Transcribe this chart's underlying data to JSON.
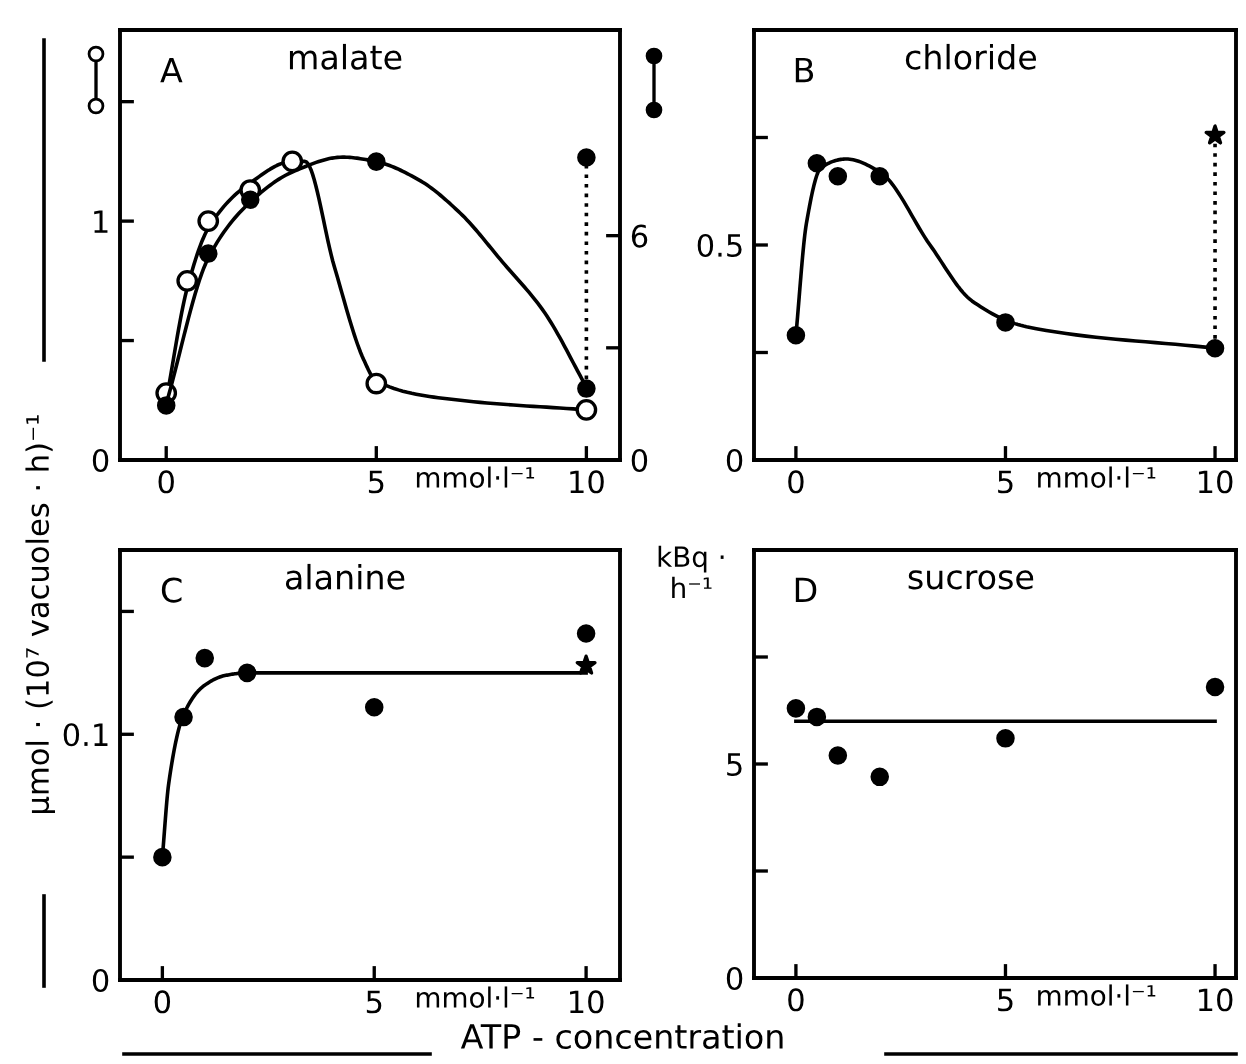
{
  "chart_data": [
    {
      "type": "scatter",
      "title": "malate",
      "annotations": [
        "A"
      ],
      "xlabel": "mmol·l⁻¹",
      "xlim": [
        -1.1,
        10.8
      ],
      "xticks": [
        0,
        5,
        10
      ],
      "ylim": [
        0,
        1.8
      ],
      "yticks": [
        0,
        {
          "value": 0.5,
          "label": null
        },
        1,
        {
          "value": 1.5,
          "label": null
        }
      ],
      "y2lim": [
        0,
        11.5
      ],
      "y2ticks": [
        0,
        {
          "value": 3,
          "label": null
        },
        6
      ],
      "legend": false,
      "grid": false,
      "marker": "circle",
      "series": [
        {
          "type": "line",
          "color": "#000000",
          "x": [
            0,
            0.5,
            1,
            2,
            3,
            3.3,
            4,
            4.7,
            5,
            7,
            10
          ],
          "values": [
            0.25,
            0.72,
            0.97,
            1.16,
            1.25,
            1.25,
            0.81,
            0.42,
            0.33,
            0.25,
            0.21
          ],
          "marker": "none"
        },
        {
          "type": "line",
          "axis": "y2",
          "color": "#000000",
          "x": [
            0,
            1,
            2,
            3,
            4.2,
            5,
            6,
            7,
            8,
            9,
            10
          ],
          "values": [
            1.5,
            5.4,
            6.9,
            7.7,
            8.1,
            7.98,
            7.5,
            6.6,
            5.3,
            3.95,
            1.95
          ],
          "marker": "none"
        },
        {
          "type": "line",
          "axis": "y2",
          "color": "#000000",
          "x": [
            10,
            10
          ],
          "values": [
            1.91,
            8.09
          ],
          "marker": "none",
          "line_style": "dotted"
        },
        {
          "axis": "y2",
          "color": "#000000",
          "x": [
            0,
            1,
            2,
            5,
            10,
            10
          ],
          "values": [
            1.46,
            5.52,
            6.96,
            7.98,
            1.91,
            8.09
          ]
        },
        {
          "color": "#ffffff",
          "x": [
            0,
            0.5,
            1,
            2,
            3,
            5,
            10
          ],
          "values": [
            0.28,
            0.75,
            1.0,
            1.13,
            1.25,
            0.32,
            0.21
          ]
        }
      ]
    },
    {
      "type": "scatter",
      "title": "chloride",
      "annotations": [
        "B"
      ],
      "xlabel": "mmol·l⁻¹",
      "xlim": [
        -1,
        10.5
      ],
      "xticks": [
        0,
        5,
        10
      ],
      "ylim": [
        0,
        1.0
      ],
      "yticks": [
        0,
        {
          "value": 0.25,
          "label": null
        },
        0.5,
        {
          "value": 0.75,
          "label": null
        }
      ],
      "legend": false,
      "grid": false,
      "marker": "circle",
      "series": [
        {
          "type": "line",
          "color": "#000000",
          "x": [
            0,
            0.25,
            0.6,
            1.2,
            2,
            3.2,
            4.2,
            5.5,
            10
          ],
          "values": [
            0.29,
            0.55,
            0.68,
            0.7,
            0.67,
            0.5,
            0.37,
            0.31,
            0.26
          ],
          "marker": "none"
        },
        {
          "type": "line",
          "color": "#000000",
          "x": [
            10,
            10
          ],
          "values": [
            0.26,
            0.755
          ],
          "marker": "none",
          "line_style": "dotted"
        },
        {
          "color": "#000000",
          "x": [
            0,
            0.5,
            1,
            2,
            5,
            10
          ],
          "values": [
            0.29,
            0.69,
            0.66,
            0.66,
            0.32,
            0.26
          ]
        },
        {
          "color": "#000000",
          "x": [
            10
          ],
          "values": [
            0.755
          ],
          "marker": "star"
        }
      ]
    },
    {
      "type": "scatter",
      "title": "alanine",
      "annotations": [
        "C",
        "ATP - concentration"
      ],
      "xlabel": "mmol·l⁻¹",
      "ylabel": "µmol · (10⁷ vacuoles · h)⁻¹",
      "xlim": [
        -1,
        10.8
      ],
      "xticks": [
        0,
        5,
        10
      ],
      "ylim": [
        0,
        0.175
      ],
      "yticks": [
        0,
        {
          "value": 0.05,
          "label": null
        },
        {
          "value": 0.1,
          "label": "0.1"
        },
        {
          "value": 0.15,
          "label": null
        }
      ],
      "legend": false,
      "grid": false,
      "marker": "circle",
      "series": [
        {
          "type": "line",
          "color": "#000000",
          "x": [
            0,
            0.15,
            0.5,
            1,
            1.5,
            2,
            10
          ],
          "values": [
            0.05,
            0.08,
            0.108,
            0.12,
            0.124,
            0.125,
            0.125
          ],
          "marker": "none"
        },
        {
          "color": "#000000",
          "x": [
            0,
            0.5,
            1,
            2,
            5,
            10
          ],
          "values": [
            0.05,
            0.107,
            0.131,
            0.125,
            0.111,
            0.141
          ]
        },
        {
          "color": "#000000",
          "x": [
            10
          ],
          "values": [
            0.128
          ],
          "marker": "star"
        }
      ]
    },
    {
      "type": "scatter",
      "title": "sucrose",
      "annotations": [
        "D"
      ],
      "xlabel": "mmol·l⁻¹",
      "ylabel": "kBq ·\nh⁻¹",
      "xlim": [
        -1,
        10.5
      ],
      "xticks": [
        0,
        5,
        10
      ],
      "ylim": [
        0,
        10
      ],
      "yticks": [
        0,
        {
          "value": 2.5,
          "label": null
        },
        5,
        {
          "value": 7.5,
          "label": null
        }
      ],
      "legend": false,
      "grid": false,
      "marker": "circle",
      "series": [
        {
          "type": "line",
          "color": "#000000",
          "x": [
            0,
            10
          ],
          "values": [
            6.0,
            6.0
          ],
          "marker": "none"
        },
        {
          "color": "#000000",
          "x": [
            0,
            0.5,
            1,
            2,
            5,
            10
          ],
          "values": [
            6.3,
            6.1,
            5.2,
            4.7,
            5.6,
            6.8
          ]
        }
      ]
    }
  ]
}
